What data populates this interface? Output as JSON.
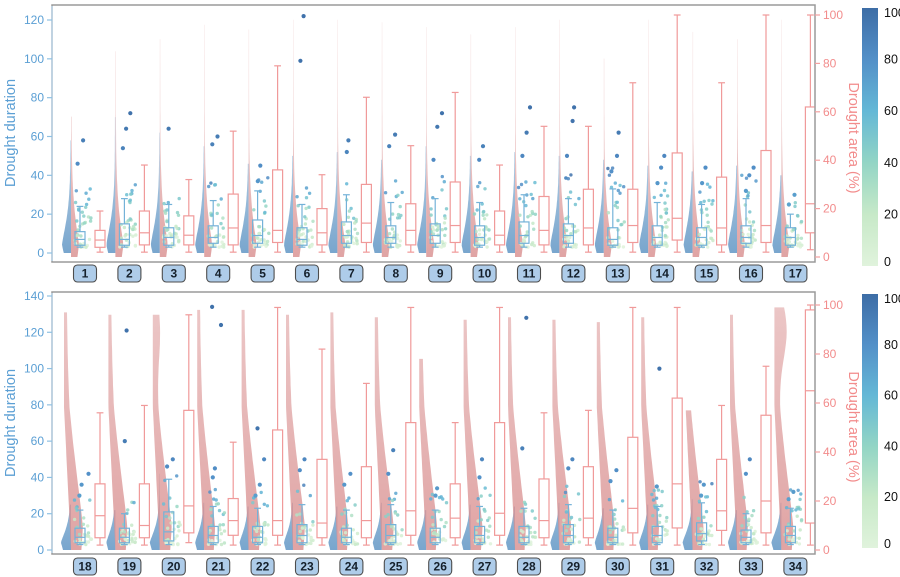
{
  "colors": {
    "duration_axis": "#5b9fd4",
    "area_axis": "#f28c8c",
    "violin_duration": "#6d9ec9",
    "violin_area": "#d99090",
    "box_duration": "#74b2d8",
    "box_area": "#f09a9a",
    "panel_border": "#9a9a9a",
    "left_spine": "#bcd6ea",
    "xlabel_box_fill": "#aecce9",
    "xlabel_box_border": "#4d4d4d",
    "xlabel_text": "#15202b",
    "colorbar_label": "#111111",
    "colormap_stops": [
      [
        0,
        "#e0f3dc"
      ],
      [
        20,
        "#c7e9c8"
      ],
      [
        40,
        "#93d5c5"
      ],
      [
        60,
        "#64b8d6"
      ],
      [
        80,
        "#5390c8"
      ],
      [
        100,
        "#3d6da6"
      ]
    ]
  },
  "colorbar": {
    "min": 0,
    "max": 100,
    "ticks": [
      0,
      20,
      40,
      60,
      80,
      100
    ]
  },
  "chart_data": [
    {
      "type": "violin-box-raincloud",
      "panel": "top",
      "ylabel": "Drought duration",
      "y2label": "Drought area (%)",
      "ylim": [
        0,
        120
      ],
      "yticks": [
        0,
        20,
        40,
        60,
        80,
        100,
        120
      ],
      "y2lim": [
        0,
        100
      ],
      "y2ticks": [
        0,
        20,
        40,
        60,
        80,
        100
      ],
      "points_per_group": 34,
      "groups": [
        {
          "label": "1",
          "duration_box": [
            3,
            4,
            7,
            11,
            24
          ],
          "area_box": [
            2,
            4,
            7,
            11,
            19
          ],
          "outliers_duration": [
            46,
            58
          ],
          "violin_duration": {
            "h": 58,
            "w": 9
          },
          "violin_area": {
            "h": 58,
            "w": 8
          }
        },
        {
          "label": "2",
          "duration_box": [
            3,
            4,
            7,
            15,
            28
          ],
          "area_box": [
            2,
            5,
            10,
            19,
            38
          ],
          "outliers_duration": [
            54,
            64,
            72
          ],
          "violin_duration": {
            "h": 70,
            "w": 9
          },
          "violin_area": {
            "h": 85,
            "w": 8
          }
        },
        {
          "label": "3",
          "duration_box": [
            3,
            4,
            8,
            13,
            25
          ],
          "area_box": [
            2,
            5,
            9,
            17,
            32
          ],
          "outliers_duration": [
            64
          ],
          "violin_duration": {
            "h": 62,
            "w": 9
          },
          "violin_area": {
            "h": 90,
            "w": 8
          }
        },
        {
          "label": "4",
          "duration_box": [
            3,
            5,
            8,
            14,
            27
          ],
          "area_box": [
            2,
            5,
            12,
            26,
            52
          ],
          "outliers_duration": [
            56,
            60
          ],
          "violin_duration": {
            "h": 55,
            "w": 9
          },
          "violin_area": {
            "h": 96,
            "w": 8
          }
        },
        {
          "label": "5",
          "duration_box": [
            3,
            5,
            9,
            17,
            32
          ],
          "area_box": [
            2,
            6,
            11,
            36,
            79
          ],
          "outliers_duration": [
            37,
            45
          ],
          "violin_duration": {
            "h": 46,
            "w": 9
          },
          "violin_area": {
            "h": 94,
            "w": 8
          }
        },
        {
          "label": "6",
          "duration_box": [
            3,
            4,
            7,
            13,
            25
          ],
          "area_box": [
            2,
            5,
            10,
            20,
            34
          ],
          "outliers_duration": [
            99,
            122
          ],
          "violin_duration": {
            "h": 50,
            "w": 9
          },
          "violin_area": {
            "h": 98,
            "w": 8
          }
        },
        {
          "label": "7",
          "duration_box": [
            3,
            5,
            9,
            16,
            30
          ],
          "area_box": [
            2,
            6,
            14,
            30,
            66
          ],
          "outliers_duration": [
            52,
            58
          ],
          "violin_duration": {
            "h": 52,
            "w": 9
          },
          "violin_area": {
            "h": 98,
            "w": 8
          }
        },
        {
          "label": "8",
          "duration_box": [
            3,
            5,
            8,
            14,
            26
          ],
          "area_box": [
            2,
            5,
            11,
            22,
            46
          ],
          "outliers_duration": [
            55,
            61
          ],
          "violin_duration": {
            "h": 48,
            "w": 9
          },
          "violin_area": {
            "h": 97,
            "w": 8
          }
        },
        {
          "label": "9",
          "duration_box": [
            3,
            5,
            9,
            15,
            28
          ],
          "area_box": [
            2,
            6,
            13,
            31,
            68
          ],
          "outliers_duration": [
            48,
            65,
            72
          ],
          "violin_duration": {
            "h": 55,
            "w": 9
          },
          "violin_area": {
            "h": 95,
            "w": 8
          }
        },
        {
          "label": "10",
          "duration_box": [
            3,
            4,
            8,
            14,
            26
          ],
          "area_box": [
            2,
            5,
            9,
            19,
            38
          ],
          "outliers_duration": [
            48,
            55
          ],
          "violin_duration": {
            "h": 50,
            "w": 9
          },
          "violin_area": {
            "h": 92,
            "w": 8
          }
        },
        {
          "label": "11",
          "duration_box": [
            3,
            5,
            9,
            16,
            30
          ],
          "area_box": [
            2,
            5,
            11,
            25,
            54
          ],
          "outliers_duration": [
            50,
            62,
            75
          ],
          "violin_duration": {
            "h": 52,
            "w": 9
          },
          "violin_area": {
            "h": 95,
            "w": 8
          }
        },
        {
          "label": "12",
          "duration_box": [
            3,
            5,
            9,
            15,
            28
          ],
          "area_box": [
            2,
            5,
            12,
            28,
            54
          ],
          "outliers_duration": [
            50,
            68,
            75
          ],
          "violin_duration": {
            "h": 50,
            "w": 9
          },
          "violin_area": {
            "h": 98,
            "w": 8
          }
        },
        {
          "label": "13",
          "duration_box": [
            3,
            4,
            7,
            13,
            33
          ],
          "area_box": [
            2,
            6,
            13,
            28,
            72
          ],
          "outliers_duration": [
            42,
            50,
            62
          ],
          "violin_duration": {
            "h": 48,
            "w": 9
          },
          "violin_area": {
            "h": 82,
            "w": 8
          }
        },
        {
          "label": "14",
          "duration_box": [
            3,
            4,
            8,
            14,
            26
          ],
          "area_box": [
            2,
            7,
            16,
            43,
            100
          ],
          "outliers_duration": [
            36,
            44,
            50
          ],
          "violin_duration": {
            "h": 45,
            "w": 9
          },
          "violin_area": {
            "h": 98,
            "w": 8
          }
        },
        {
          "label": "15",
          "duration_box": [
            3,
            4,
            8,
            13,
            25
          ],
          "area_box": [
            2,
            5,
            12,
            33,
            72
          ],
          "outliers_duration": [
            36,
            44
          ],
          "violin_duration": {
            "h": 42,
            "w": 9
          },
          "violin_area": {
            "h": 93,
            "w": 8
          }
        },
        {
          "label": "16",
          "duration_box": [
            3,
            5,
            8,
            14,
            28
          ],
          "area_box": [
            2,
            6,
            13,
            44,
            100
          ],
          "outliers_duration": [
            32,
            40,
            44
          ],
          "violin_duration": {
            "h": 45,
            "w": 9
          },
          "violin_area": {
            "h": 90,
            "w": 8
          }
        },
        {
          "label": "17",
          "duration_box": [
            3,
            4,
            8,
            13,
            20
          ],
          "area_box": [
            3,
            10,
            22,
            62,
            100
          ],
          "outliers_duration": [
            25,
            30
          ],
          "violin_duration": {
            "h": 40,
            "w": 9
          },
          "violin_area": {
            "h": 98,
            "w": 8
          }
        }
      ]
    },
    {
      "type": "violin-box-raincloud",
      "panel": "bottom",
      "ylabel": "Drought duration",
      "y2label": "Drought area (%)",
      "ylim": [
        0,
        140
      ],
      "yticks": [
        0,
        20,
        40,
        60,
        80,
        100,
        120,
        140
      ],
      "y2lim": [
        0,
        100
      ],
      "y2ticks": [
        0,
        20,
        40,
        60,
        80,
        100
      ],
      "points_per_group": 30,
      "groups": [
        {
          "label": "18",
          "duration_box": [
            3,
            4,
            7,
            12,
            22
          ],
          "area_box": [
            2,
            5,
            14,
            27,
            56
          ],
          "outliers_duration": [
            30,
            36,
            42
          ],
          "violin_duration": {
            "h": 25,
            "w": 10
          },
          "violin_area": {
            "h": 97,
            "w": 13
          }
        },
        {
          "label": "19",
          "duration_box": [
            3,
            4,
            7,
            12,
            20
          ],
          "area_box": [
            2,
            5,
            10,
            27,
            59
          ],
          "outliers_duration": [
            60,
            121
          ],
          "violin_duration": {
            "h": 22,
            "w": 9
          },
          "violin_area": {
            "h": 96,
            "w": 13
          }
        },
        {
          "label": "20",
          "duration_box": [
            3,
            5,
            10,
            21,
            39
          ],
          "area_box": [
            3,
            7,
            18,
            57,
            96
          ],
          "outliers_duration": [
            46,
            50
          ],
          "violin_duration": {
            "h": 42,
            "w": 10
          },
          "violin_area": {
            "h": 96,
            "w": 13,
            "b2": 90,
            "w2": 4
          }
        },
        {
          "label": "21",
          "duration_box": [
            3,
            4,
            8,
            13,
            24
          ],
          "area_box": [
            2,
            6,
            12,
            21,
            44
          ],
          "outliers_duration": [
            40,
            45,
            124,
            134
          ],
          "violin_duration": {
            "h": 26,
            "w": 9
          },
          "violin_area": {
            "h": 98,
            "w": 12
          }
        },
        {
          "label": "22",
          "duration_box": [
            3,
            4,
            7,
            13,
            23
          ],
          "area_box": [
            2,
            6,
            12,
            49,
            99
          ],
          "outliers_duration": [
            30,
            36,
            50,
            67
          ],
          "violin_duration": {
            "h": 24,
            "w": 9
          },
          "violin_area": {
            "h": 98,
            "w": 13
          }
        },
        {
          "label": "23",
          "duration_box": [
            3,
            4,
            8,
            14,
            25
          ],
          "area_box": [
            2,
            5,
            11,
            37,
            82
          ],
          "outliers_duration": [
            44,
            50
          ],
          "violin_duration": {
            "h": 26,
            "w": 9
          },
          "violin_area": {
            "h": 96,
            "w": 13
          }
        },
        {
          "label": "24",
          "duration_box": [
            3,
            4,
            7,
            12,
            22
          ],
          "area_box": [
            2,
            5,
            12,
            34,
            68
          ],
          "outliers_duration": [
            36,
            42
          ],
          "violin_duration": {
            "h": 24,
            "w": 9
          },
          "violin_area": {
            "h": 97,
            "w": 12
          }
        },
        {
          "label": "25",
          "duration_box": [
            3,
            4,
            8,
            14,
            25
          ],
          "area_box": [
            2,
            6,
            16,
            52,
            99
          ],
          "outliers_duration": [
            42,
            55
          ],
          "violin_duration": {
            "h": 26,
            "w": 9
          },
          "violin_area": {
            "h": 95,
            "w": 13
          }
        },
        {
          "label": "26",
          "duration_box": [
            3,
            4,
            7,
            12,
            22
          ],
          "area_box": [
            2,
            5,
            13,
            27,
            52
          ],
          "outliers_duration": [
            30,
            34
          ],
          "violin_duration": {
            "h": 22,
            "w": 9
          },
          "violin_area": {
            "h": 78,
            "w": 12
          }
        },
        {
          "label": "27",
          "duration_box": [
            3,
            4,
            8,
            13,
            24
          ],
          "area_box": [
            2,
            6,
            15,
            52,
            99
          ],
          "outliers_duration": [
            40,
            50
          ],
          "violin_duration": {
            "h": 25,
            "w": 9
          },
          "violin_area": {
            "h": 94,
            "w": 13
          }
        },
        {
          "label": "28",
          "duration_box": [
            3,
            4,
            7,
            13,
            23
          ],
          "area_box": [
            2,
            5,
            12,
            29,
            56
          ],
          "outliers_duration": [
            56,
            128
          ],
          "violin_duration": {
            "h": 24,
            "w": 9
          },
          "violin_area": {
            "h": 95,
            "w": 12
          }
        },
        {
          "label": "29",
          "duration_box": [
            3,
            4,
            8,
            14,
            25
          ],
          "area_box": [
            2,
            5,
            13,
            34,
            57
          ],
          "outliers_duration": [
            45,
            50
          ],
          "violin_duration": {
            "h": 26,
            "w": 9
          },
          "violin_area": {
            "h": 94,
            "w": 13
          }
        },
        {
          "label": "30",
          "duration_box": [
            3,
            4,
            7,
            12,
            22
          ],
          "area_box": [
            2,
            7,
            17,
            46,
            99
          ],
          "outliers_duration": [
            38,
            44
          ],
          "violin_duration": {
            "h": 23,
            "w": 9
          },
          "violin_area": {
            "h": 93,
            "w": 12
          }
        },
        {
          "label": "31",
          "duration_box": [
            3,
            4,
            8,
            13,
            24
          ],
          "area_box": [
            2,
            9,
            27,
            62,
            99
          ],
          "outliers_duration": [
            35,
            100
          ],
          "violin_duration": {
            "h": 25,
            "w": 9
          },
          "violin_area": {
            "h": 95,
            "w": 12
          }
        },
        {
          "label": "32",
          "duration_box": [
            3,
            5,
            9,
            15,
            26
          ],
          "area_box": [
            2,
            8,
            16,
            37,
            59
          ],
          "outliers_duration": [
            30,
            36
          ],
          "violin_duration": {
            "h": 28,
            "w": 10
          },
          "violin_area": {
            "h": 57,
            "w": 12
          }
        },
        {
          "label": "33",
          "duration_box": [
            3,
            4,
            7,
            11,
            20
          ],
          "area_box": [
            2,
            7,
            20,
            55,
            75
          ],
          "outliers_duration": [
            42,
            50
          ],
          "violin_duration": {
            "h": 22,
            "w": 9
          },
          "violin_area": {
            "h": 96,
            "w": 12
          }
        },
        {
          "label": "34",
          "duration_box": [
            3,
            4,
            8,
            13,
            23
          ],
          "area_box": [
            2,
            11,
            65,
            98,
            100
          ],
          "outliers_duration": [
            28,
            32
          ],
          "violin_duration": {
            "h": 26,
            "w": 10
          },
          "violin_area": {
            "h": 99,
            "w": 13,
            "b2": 90,
            "w2": 9
          }
        }
      ]
    }
  ]
}
